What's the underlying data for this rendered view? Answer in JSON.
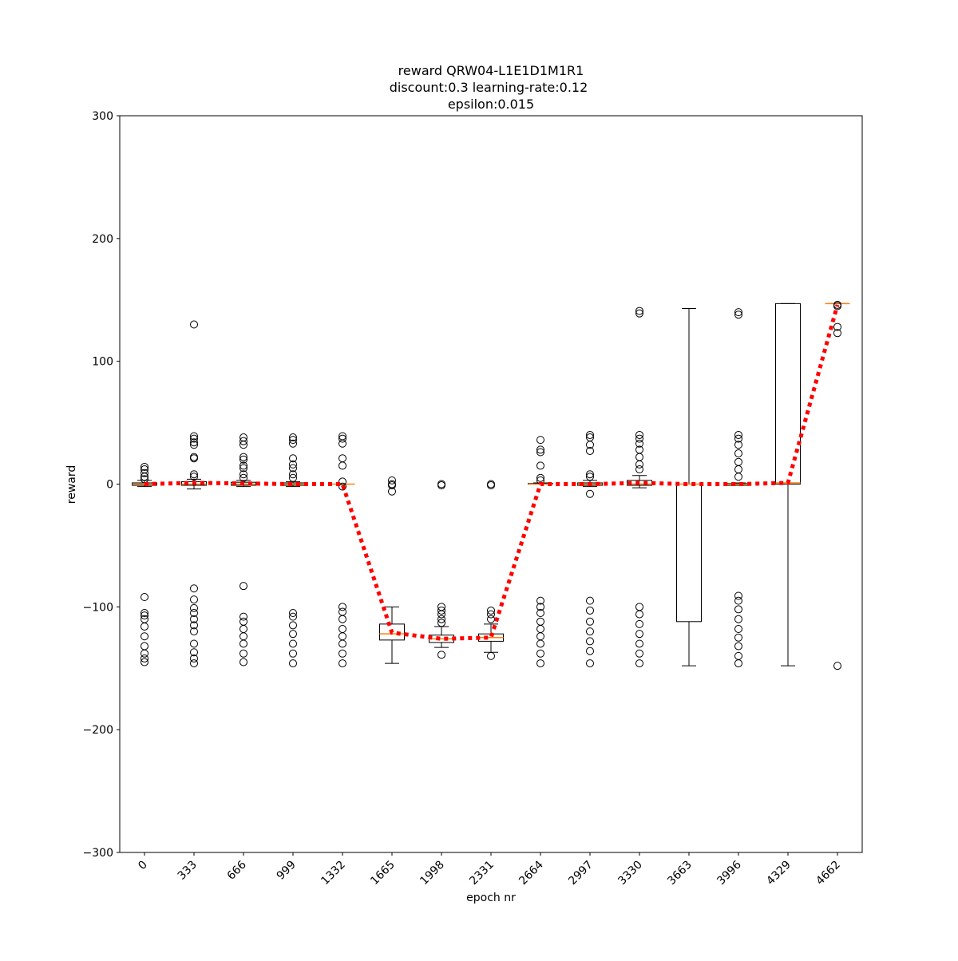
{
  "chart_data": {
    "type": "box",
    "title": [
      "reward QRW04-L1E1D1M1R1",
      "discount:0.3 learning-rate:0.12",
      "epsilon:0.015"
    ],
    "xlabel": "epoch nr",
    "ylabel": "reward",
    "categories": [
      "0",
      "333",
      "666",
      "999",
      "1332",
      "1665",
      "1998",
      "2331",
      "2664",
      "2997",
      "3330",
      "3663",
      "3996",
      "4329",
      "4662"
    ],
    "box_color": "#000000",
    "median_color": "#ff7f0e",
    "boxes": [
      {
        "whislo": -2,
        "q1": -1,
        "med": 0,
        "q3": 1,
        "whishi": 3,
        "fliers": [
          14,
          12,
          9,
          6,
          4,
          -92,
          -105,
          -107,
          -110,
          -116,
          -124,
          -132,
          -138,
          -142,
          -145
        ]
      },
      {
        "whislo": -4,
        "q1": -1,
        "med": 0,
        "q3": 2,
        "whishi": 4,
        "fliers": [
          130,
          39,
          37,
          34,
          32,
          22,
          21,
          8,
          6,
          -85,
          -94,
          -101,
          -105,
          -110,
          -115,
          -120,
          -130,
          -137,
          -142,
          -146
        ]
      },
      {
        "whislo": -2,
        "q1": -1,
        "med": 0,
        "q3": 1.5,
        "whishi": 3,
        "fliers": [
          38,
          35,
          32,
          22,
          20,
          15,
          13,
          8,
          5,
          -83,
          -108,
          -112,
          -118,
          -124,
          -130,
          -138,
          -145
        ]
      },
      {
        "whislo": -2,
        "q1": -1,
        "med": 0,
        "q3": 1,
        "whishi": 2,
        "fliers": [
          38,
          36,
          33,
          21,
          16,
          13,
          8,
          5,
          -105,
          -108,
          -115,
          -122,
          -130,
          -138,
          -146
        ]
      },
      {
        "whislo": 0,
        "q1": 0,
        "med": 0,
        "q3": 0,
        "whishi": 0,
        "fliers": [
          39,
          37,
          33,
          21,
          15,
          2,
          -2,
          -100,
          -104,
          -110,
          -118,
          -124,
          -130,
          -138,
          -146
        ]
      },
      {
        "whislo": -146,
        "q1": -127,
        "med": -122,
        "q3": -114,
        "whishi": -100,
        "fliers": [
          3,
          0,
          -1,
          -6
        ]
      },
      {
        "whislo": -133,
        "q1": -129,
        "med": -126,
        "q3": -123,
        "whishi": -116,
        "fliers": [
          0,
          -1,
          -100,
          -103,
          -106,
          -110,
          -113,
          -139
        ]
      },
      {
        "whislo": -137,
        "q1": -128,
        "med": -125,
        "q3": -122,
        "whishi": -114,
        "fliers": [
          0,
          -1,
          -103,
          -106,
          -110,
          -140
        ]
      },
      {
        "whislo": 0,
        "q1": 0,
        "med": 0,
        "q3": 0.5,
        "whishi": 1,
        "fliers": [
          36,
          28,
          26,
          15,
          5,
          3,
          -95,
          -100,
          -105,
          -112,
          -118,
          -124,
          -130,
          -138,
          -146
        ]
      },
      {
        "whislo": -2,
        "q1": -1,
        "med": 0,
        "q3": 1,
        "whishi": 3,
        "fliers": [
          40,
          38,
          32,
          27,
          8,
          6,
          -8,
          -95,
          -103,
          -112,
          -120,
          -128,
          -136,
          -146
        ]
      },
      {
        "whislo": -3,
        "q1": -1,
        "med": 0,
        "q3": 3,
        "whishi": 7,
        "fliers": [
          141,
          139,
          40,
          37,
          33,
          28,
          22,
          16,
          12,
          -100,
          -106,
          -114,
          -122,
          -130,
          -138,
          -146
        ]
      },
      {
        "whislo": -148,
        "q1": -112,
        "med": 0,
        "q3": 0,
        "whishi": 143,
        "fliers": []
      },
      {
        "whislo": -1,
        "q1": -1,
        "med": 0,
        "q3": 0.5,
        "whishi": 1,
        "fliers": [
          140,
          138,
          40,
          37,
          32,
          25,
          18,
          12,
          6,
          -91,
          -95,
          -102,
          -110,
          -118,
          -125,
          -132,
          -140,
          -146
        ]
      },
      {
        "whislo": -148,
        "q1": 0,
        "med": 1,
        "q3": 147,
        "whishi": 147,
        "fliers": []
      },
      {
        "whislo": 147,
        "q1": 147,
        "med": 147,
        "q3": 147,
        "whishi": 147,
        "fliers": [
          146,
          145,
          128,
          123,
          -148
        ]
      }
    ],
    "means": {
      "color": "#ff0000",
      "values": [
        0,
        1,
        0.5,
        0,
        0,
        -121,
        -126,
        -125,
        0,
        0,
        1,
        0,
        0,
        1,
        146
      ]
    },
    "ylim": [
      -300,
      300
    ],
    "yticks": [
      {
        "value": -300,
        "label": "−300"
      },
      {
        "value": -200,
        "label": "−200"
      },
      {
        "value": -100,
        "label": "−100"
      },
      0,
      100,
      200,
      300
    ]
  }
}
